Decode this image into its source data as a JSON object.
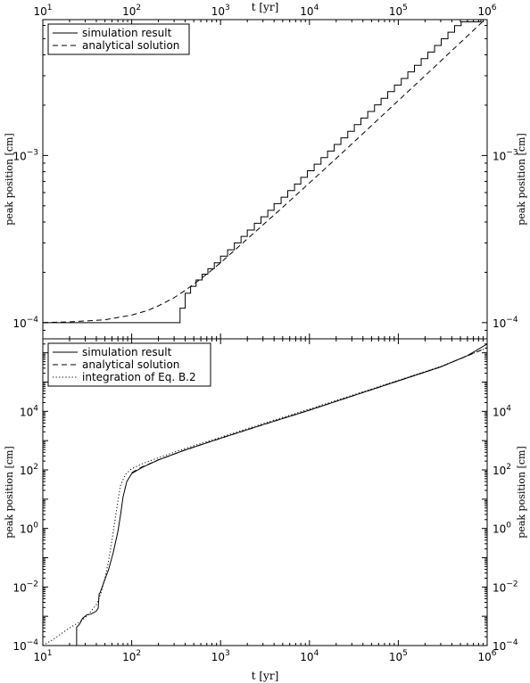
{
  "figure": {
    "top_xlabel": "t [yr]",
    "bottom_xlabel": "t [yr]"
  },
  "chart_data": [
    {
      "type": "line",
      "panel": "top",
      "xscale": "log",
      "yscale": "log",
      "xlim": [
        10,
        1000000
      ],
      "ylim": [
        8e-05,
        0.0065
      ],
      "ylabel": "peak position [cm]",
      "x_ticks": [
        {
          "value": 10,
          "base": "10",
          "exp": "1"
        },
        {
          "value": 100,
          "base": "10",
          "exp": "2"
        },
        {
          "value": 1000,
          "base": "10",
          "exp": "3"
        },
        {
          "value": 10000,
          "base": "10",
          "exp": "4"
        },
        {
          "value": 100000,
          "base": "10",
          "exp": "5"
        },
        {
          "value": 1000000,
          "base": "10",
          "exp": "6"
        }
      ],
      "y_ticks": [
        {
          "value": 0.0001,
          "base": "10",
          "exp": "−4"
        },
        {
          "value": 0.001,
          "base": "10",
          "exp": "−3"
        }
      ],
      "legend": {
        "position": "top-left"
      },
      "series": [
        {
          "name": "simulation result",
          "style": "solid",
          "color": "#000000",
          "points": [
            [
              10,
              0.0001
            ],
            [
              350,
              0.0001
            ],
            [
              350,
              0.000122
            ],
            [
              400,
              0.000122
            ],
            [
              400,
              0.00015
            ],
            [
              460,
              0.00015
            ],
            [
              460,
              0.000165
            ],
            [
              530,
              0.000165
            ],
            [
              530,
              0.00018
            ],
            [
              620,
              0.00018
            ],
            [
              620,
              0.000195
            ],
            [
              720,
              0.000195
            ],
            [
              720,
              0.00021
            ],
            [
              850,
              0.00021
            ],
            [
              850,
              0.000228
            ],
            [
              1000,
              0.000228
            ],
            [
              1000,
              0.00025
            ],
            [
              1200,
              0.00025
            ],
            [
              1200,
              0.000273
            ],
            [
              1430,
              0.000273
            ],
            [
              1430,
              0.0003
            ],
            [
              1700,
              0.0003
            ],
            [
              1700,
              0.000328
            ],
            [
              2000,
              0.000328
            ],
            [
              2000,
              0.000358
            ],
            [
              2400,
              0.000358
            ],
            [
              2400,
              0.000393
            ],
            [
              2850,
              0.000393
            ],
            [
              2850,
              0.00043
            ],
            [
              3400,
              0.00043
            ],
            [
              3400,
              0.00047
            ],
            [
              4000,
              0.00047
            ],
            [
              4000,
              0.000515
            ],
            [
              4800,
              0.000515
            ],
            [
              4800,
              0.000563
            ],
            [
              5700,
              0.000563
            ],
            [
              5700,
              0.000617
            ],
            [
              6800,
              0.000617
            ],
            [
              6800,
              0.000675
            ],
            [
              8000,
              0.000675
            ],
            [
              8000,
              0.00074
            ],
            [
              9500,
              0.00074
            ],
            [
              9500,
              0.00081
            ],
            [
              11300,
              0.00081
            ],
            [
              11300,
              0.000887
            ],
            [
              13500,
              0.000887
            ],
            [
              13500,
              0.000971
            ],
            [
              16000,
              0.000971
            ],
            [
              16000,
              0.001063
            ],
            [
              19000,
              0.001063
            ],
            [
              19000,
              0.001164
            ],
            [
              22600,
              0.001164
            ],
            [
              22600,
              0.001275
            ],
            [
              27000,
              0.001275
            ],
            [
              27000,
              0.001396
            ],
            [
              32000,
              0.001396
            ],
            [
              32000,
              0.00153
            ],
            [
              38000,
              0.00153
            ],
            [
              38000,
              0.001675
            ],
            [
              45300,
              0.001675
            ],
            [
              45300,
              0.001834
            ],
            [
              54000,
              0.001834
            ],
            [
              54000,
              0.002008
            ],
            [
              64000,
              0.002008
            ],
            [
              64000,
              0.0022
            ],
            [
              76000,
              0.0022
            ],
            [
              76000,
              0.00241
            ],
            [
              90500,
              0.00241
            ],
            [
              90500,
              0.00264
            ],
            [
              108000,
              0.00264
            ],
            [
              108000,
              0.00289
            ],
            [
              128000,
              0.00289
            ],
            [
              128000,
              0.003165
            ],
            [
              152000,
              0.003165
            ],
            [
              152000,
              0.003466
            ],
            [
              181000,
              0.003466
            ],
            [
              181000,
              0.003797
            ],
            [
              215000,
              0.003797
            ],
            [
              215000,
              0.004159
            ],
            [
              256000,
              0.004159
            ],
            [
              256000,
              0.004555
            ],
            [
              304000,
              0.004555
            ],
            [
              304000,
              0.00499
            ],
            [
              362000,
              0.00499
            ],
            [
              362000,
              0.005465
            ],
            [
              430000,
              0.005465
            ],
            [
              430000,
              0.005986
            ],
            [
              510000,
              0.005986
            ],
            [
              510000,
              0.0063
            ],
            [
              850000,
              0.0063
            ],
            [
              850000,
              0.0067
            ],
            [
              1000000,
              0.0067
            ]
          ]
        },
        {
          "name": "analytical solution",
          "style": "dashed",
          "color": "#000000",
          "points": [
            [
              10,
              0.0001
            ],
            [
              20,
              0.000101
            ],
            [
              50,
              0.000104
            ],
            [
              100,
              0.000111
            ],
            [
              150,
              0.000118
            ],
            [
              200,
              0.000126
            ],
            [
              300,
              0.000141
            ],
            [
              400,
              0.000156
            ],
            [
              500,
              0.00017
            ],
            [
              700,
              0.000195
            ],
            [
              1000,
              0.000228
            ],
            [
              2000,
              0.000317
            ],
            [
              5000,
              0.00049
            ],
            [
              10000,
              0.000685
            ],
            [
              20000,
              0.00096
            ],
            [
              50000,
              0.00151
            ],
            [
              100000,
              0.00213
            ],
            [
              200000,
              0.003
            ],
            [
              500000,
              0.00474
            ],
            [
              1000000,
              0.0067
            ]
          ]
        }
      ]
    },
    {
      "type": "line",
      "panel": "bottom",
      "xscale": "log",
      "yscale": "log",
      "xlim": [
        10,
        1000000
      ],
      "ylim": [
        0.0001,
        3000000
      ],
      "ylabel": "peak position [cm]",
      "x_ticks": [
        {
          "value": 10,
          "base": "10",
          "exp": "1"
        },
        {
          "value": 100,
          "base": "10",
          "exp": "2"
        },
        {
          "value": 1000,
          "base": "10",
          "exp": "3"
        },
        {
          "value": 10000,
          "base": "10",
          "exp": "4"
        },
        {
          "value": 100000,
          "base": "10",
          "exp": "5"
        },
        {
          "value": 1000000,
          "base": "10",
          "exp": "6"
        }
      ],
      "y_ticks": [
        {
          "value": 0.0001,
          "base": "10",
          "exp": "−4"
        },
        {
          "value": 0.01,
          "base": "10",
          "exp": "−2"
        },
        {
          "value": 1,
          "base": "10",
          "exp": "0"
        },
        {
          "value": 100,
          "base": "10",
          "exp": "2"
        },
        {
          "value": 10000,
          "base": "10",
          "exp": "4"
        }
      ],
      "legend": {
        "position": "top-left"
      },
      "series": [
        {
          "name": "simulation result",
          "style": "solid",
          "color": "#000000",
          "points": [
            [
              24,
              0.0001
            ],
            [
              24,
              0.00042
            ],
            [
              26,
              0.00055
            ],
            [
              28,
              0.00085
            ],
            [
              31,
              0.0011
            ],
            [
              35,
              0.0012
            ],
            [
              40,
              0.0015
            ],
            [
              42,
              0.0019
            ],
            [
              43,
              0.0058
            ],
            [
              44,
              0.0063
            ],
            [
              48,
              0.013
            ],
            [
              55,
              0.04
            ],
            [
              62,
              0.15
            ],
            [
              70,
              0.8
            ],
            [
              75,
              3
            ],
            [
              80,
              12
            ],
            [
              88,
              40
            ],
            [
              100,
              75
            ],
            [
              130,
              120
            ],
            [
              200,
              220
            ],
            [
              400,
              480
            ],
            [
              1000,
              1200
            ],
            [
              3000,
              3500
            ],
            [
              10000,
              11000
            ],
            [
              30000,
              33000
            ],
            [
              100000,
              110000
            ],
            [
              300000,
              330000
            ],
            [
              600000,
              800000
            ],
            [
              1000000,
              2000000
            ]
          ]
        },
        {
          "name": "analytical solution",
          "style": "dashed",
          "color": "#000000",
          "points": [
            [
              100,
              80
            ],
            [
              130,
              125
            ],
            [
              200,
              220
            ],
            [
              400,
              480
            ],
            [
              1000,
              1200
            ],
            [
              3000,
              3500
            ],
            [
              10000,
              11000
            ],
            [
              30000,
              33000
            ],
            [
              100000,
              110000
            ],
            [
              300000,
              330000
            ],
            [
              1000000,
              1500000
            ]
          ]
        },
        {
          "name": "integration of Eq. B.2",
          "style": "dotted",
          "color": "#000000",
          "points": [
            [
              10,
              0.0001
            ],
            [
              13,
              0.00016
            ],
            [
              16,
              0.00025
            ],
            [
              20,
              0.0004
            ],
            [
              25,
              0.0006
            ],
            [
              30,
              0.0009
            ],
            [
              35,
              0.0015
            ],
            [
              40,
              0.0025
            ],
            [
              45,
              0.006
            ],
            [
              50,
              0.02
            ],
            [
              55,
              0.08
            ],
            [
              60,
              0.4
            ],
            [
              65,
              2
            ],
            [
              70,
              9
            ],
            [
              75,
              30
            ],
            [
              85,
              70
            ],
            [
              100,
              110
            ],
            [
              130,
              160
            ],
            [
              200,
              260
            ],
            [
              400,
              540
            ],
            [
              1000,
              1300
            ],
            [
              3000,
              3800
            ],
            [
              10000,
              12000
            ],
            [
              30000,
              35000
            ],
            [
              100000,
              115000
            ],
            [
              300000,
              340000
            ],
            [
              1000000,
              1500000
            ]
          ]
        }
      ]
    }
  ]
}
